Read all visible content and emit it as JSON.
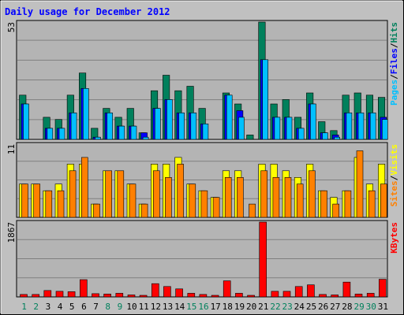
{
  "chart_data": [
    {
      "type": "bar",
      "panel": "hits-files-pages",
      "title": "Daily usage for December 2012",
      "categories": [
        "1",
        "2",
        "3",
        "4",
        "5",
        "6",
        "7",
        "8",
        "9",
        "10",
        "11",
        "12",
        "13",
        "14",
        "15",
        "16",
        "17",
        "18",
        "19",
        "20",
        "21",
        "22",
        "23",
        "24",
        "25",
        "26",
        "27",
        "28",
        "29",
        "30",
        "31"
      ],
      "weekend_days": [
        "1",
        "2",
        "8",
        "9",
        "15",
        "16",
        "22",
        "23",
        "29",
        "30"
      ],
      "ymax_label": "53",
      "ylim": [
        0,
        53
      ],
      "grid": true,
      "legend_text": [
        "Pages",
        "/",
        "Files",
        "/",
        "Hits"
      ],
      "series": [
        {
          "name": "Hits",
          "values": [
            20,
            0,
            10,
            9,
            20,
            30,
            5,
            14,
            10,
            14,
            3,
            22,
            29,
            22,
            24,
            14,
            0,
            21,
            16,
            2,
            53,
            16,
            18,
            10,
            21,
            8,
            4,
            20,
            21,
            20,
            19
          ]
        },
        {
          "name": "Files",
          "values": [
            16,
            0,
            5,
            5,
            12,
            23,
            1,
            12,
            6,
            6,
            3,
            14,
            18,
            12,
            12,
            7,
            0,
            20,
            13,
            0,
            36,
            10,
            10,
            5,
            16,
            3,
            2,
            12,
            12,
            12,
            10
          ]
        },
        {
          "name": "Pages",
          "values": [
            16,
            0,
            5,
            5,
            12,
            23,
            1,
            12,
            6,
            6,
            1,
            14,
            18,
            12,
            12,
            7,
            0,
            20,
            10,
            0,
            36,
            10,
            10,
            5,
            16,
            3,
            1,
            12,
            12,
            12,
            9
          ]
        }
      ]
    },
    {
      "type": "bar",
      "panel": "visits-sites",
      "categories": [
        "1",
        "2",
        "3",
        "4",
        "5",
        "6",
        "7",
        "8",
        "9",
        "10",
        "11",
        "12",
        "13",
        "14",
        "15",
        "16",
        "17",
        "18",
        "19",
        "20",
        "21",
        "22",
        "23",
        "24",
        "25",
        "26",
        "27",
        "28",
        "29",
        "30",
        "31"
      ],
      "ymax_label": "11",
      "ylim": [
        0,
        11
      ],
      "grid": true,
      "legend_text": [
        "Sites",
        "/",
        "Visits"
      ],
      "series": [
        {
          "name": "Visits",
          "values": [
            5,
            5,
            4,
            5,
            8,
            8,
            2,
            7,
            7,
            5,
            2,
            8,
            8,
            9,
            5,
            4,
            3,
            7,
            7,
            0,
            8,
            8,
            7,
            6,
            8,
            4,
            3,
            4,
            9,
            5,
            8
          ]
        },
        {
          "name": "Sites",
          "values": [
            5,
            5,
            4,
            4,
            7,
            9,
            2,
            7,
            7,
            5,
            2,
            7,
            6,
            8,
            5,
            4,
            3,
            6,
            6,
            2,
            7,
            6,
            6,
            5,
            7,
            4,
            2,
            4,
            10,
            4,
            5
          ]
        }
      ]
    },
    {
      "type": "bar",
      "panel": "kbytes",
      "categories": [
        "1",
        "2",
        "3",
        "4",
        "5",
        "6",
        "7",
        "8",
        "9",
        "10",
        "11",
        "12",
        "13",
        "14",
        "15",
        "16",
        "17",
        "18",
        "19",
        "20",
        "21",
        "22",
        "23",
        "24",
        "25",
        "26",
        "27",
        "28",
        "29",
        "30",
        "31"
      ],
      "ymax_label": "1867",
      "ylim": [
        0,
        1867
      ],
      "grid": true,
      "legend_text": [
        "KBytes"
      ],
      "series": [
        {
          "name": "KBytes",
          "values": [
            60,
            60,
            160,
            140,
            130,
            430,
            80,
            70,
            90,
            50,
            40,
            330,
            260,
            200,
            90,
            60,
            40,
            400,
            90,
            10,
            1867,
            140,
            140,
            260,
            300,
            60,
            50,
            370,
            70,
            90,
            440
          ]
        }
      ]
    }
  ],
  "colors": {
    "background": "#c0c0c0",
    "plot_background": "#b4b4b4",
    "grid": "#808080",
    "title": "#0000ff",
    "hits": "#00805c",
    "files": "#0000ff",
    "pages": "#00c0ff",
    "visits": "#ffff00",
    "sites": "#ff8000",
    "kbytes": "#ff0000",
    "weekday_label": "#000000",
    "weekend_label": "#00805c",
    "bar_outline": "#000000"
  }
}
